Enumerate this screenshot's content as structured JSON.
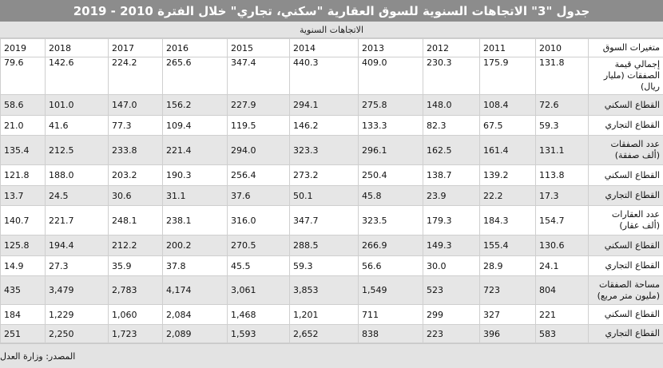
{
  "title": "جدول \"3\" الاتجاهات السنوية للسوق العقارية \"سكني، تجاري\" خلال الفترة 2010 - 2019",
  "subtitle": "الاتجاهات السنوية",
  "header": {
    "label": "متغيرات السوق",
    "years": [
      "2010",
      "2011",
      "2012",
      "2013",
      "2014",
      "2015",
      "2016",
      "2017",
      "2018",
      "2019"
    ]
  },
  "rows": [
    {
      "label": "إجمالي قيمة الصفقات (مليار ريال)",
      "values": [
        "131.8",
        "175.9",
        "230.3",
        "409.0",
        "440.3",
        "347.4",
        "265.6",
        "224.2",
        "142.6",
        "79.6"
      ]
    },
    {
      "label": "القطاع السكني",
      "values": [
        "72.6",
        "108.4",
        "148.0",
        "275.8",
        "294.1",
        "227.9",
        "156.2",
        "147.0",
        "101.0",
        "58.6"
      ]
    },
    {
      "label": "القطاع التجاري",
      "values": [
        "59.3",
        "67.5",
        "82.3",
        "133.3",
        "146.2",
        "119.5",
        "109.4",
        "77.3",
        "41.6",
        "21.0"
      ]
    },
    {
      "label": "عدد الصفقات (ألف صفقة)",
      "values": [
        "131.1",
        "161.4",
        "162.5",
        "296.1",
        "323.3",
        "294.0",
        "221.4",
        "233.8",
        "212.5",
        "135.4"
      ]
    },
    {
      "label": "القطاع السكني",
      "values": [
        "113.8",
        "139.2",
        "138.7",
        "250.4",
        "273.2",
        "256.4",
        "190.3",
        "203.2",
        "188.0",
        "121.8"
      ]
    },
    {
      "label": "القطاع التجاري",
      "values": [
        "17.3",
        "22.2",
        "23.9",
        "45.8",
        "50.1",
        "37.6",
        "31.1",
        "30.6",
        "24.5",
        "13.7"
      ]
    },
    {
      "label": "عدد العقارات (ألف عقار)",
      "values": [
        "154.7",
        "184.3",
        "179.3",
        "323.5",
        "347.7",
        "316.0",
        "238.1",
        "248.1",
        "221.7",
        "140.7"
      ]
    },
    {
      "label": "القطاع السكني",
      "values": [
        "130.6",
        "155.4",
        "149.3",
        "266.9",
        "288.5",
        "270.5",
        "200.2",
        "212.2",
        "194.4",
        "125.8"
      ]
    },
    {
      "label": "القطاع التجاري",
      "values": [
        "24.1",
        "28.9",
        "30.0",
        "56.6",
        "59.3",
        "45.5",
        "37.8",
        "35.9",
        "27.3",
        "14.9"
      ]
    },
    {
      "label": "مساحة الصفقات (مليون متر مربع)",
      "values": [
        "804",
        "723",
        "523",
        "1,549",
        "3,853",
        "3,061",
        "4,174",
        "2,783",
        "3,479",
        "435"
      ]
    },
    {
      "label": "القطاع السكني",
      "values": [
        "221",
        "327",
        "299",
        "711",
        "1,201",
        "1,468",
        "2,084",
        "1,060",
        "1,229",
        "184"
      ]
    },
    {
      "label": "القطاع التجاري",
      "values": [
        "583",
        "396",
        "223",
        "838",
        "2,652",
        "1,593",
        "2,089",
        "1,723",
        "2,250",
        "251"
      ]
    }
  ],
  "source": "المصدر: وزارة العدل"
}
